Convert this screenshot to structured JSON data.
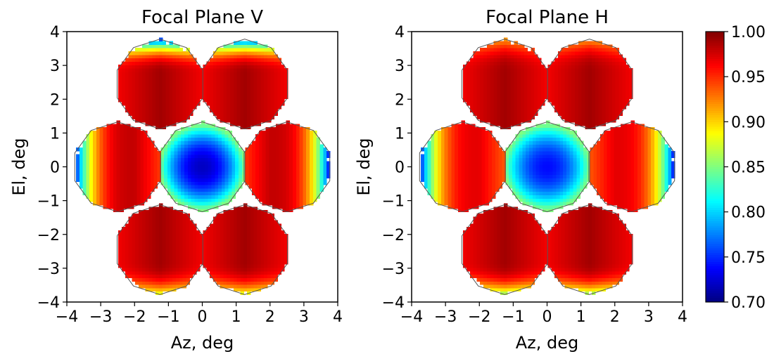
{
  "chart_data": [
    {
      "type": "heatmap",
      "title": "Focal Plane V",
      "xlabel": "Az, deg",
      "ylabel": "El, deg",
      "xlim": [
        -4,
        4
      ],
      "ylim": [
        -4,
        4
      ],
      "xticks": [
        -4,
        -3,
        -2,
        -1,
        0,
        1,
        2,
        3,
        4
      ],
      "yticks": [
        -4,
        -3,
        -2,
        -1,
        0,
        1,
        2,
        3,
        4
      ],
      "grid": false,
      "pixel_size_deg": 0.1,
      "cells": [
        {
          "cx": 0.0,
          "cy": 0.0,
          "max": 0.85,
          "min": 0.72,
          "dir": "radial"
        },
        {
          "cx": 2.5,
          "cy": 0.0,
          "max": 0.98,
          "min": 0.72,
          "dir": "x"
        },
        {
          "cx": -2.5,
          "cy": 0.0,
          "max": 0.98,
          "min": 0.72,
          "dir": "x"
        },
        {
          "cx": 1.25,
          "cy": 2.45,
          "max": 0.99,
          "min": 0.76,
          "dir": "y"
        },
        {
          "cx": -1.25,
          "cy": 2.45,
          "max": 0.99,
          "min": 0.76,
          "dir": "y"
        },
        {
          "cx": 1.25,
          "cy": -2.45,
          "max": 0.99,
          "min": 0.88,
          "dir": "y"
        },
        {
          "cx": -1.25,
          "cy": -2.45,
          "max": 0.99,
          "min": 0.88,
          "dir": "y"
        }
      ]
    },
    {
      "type": "heatmap",
      "title": "Focal Plane H",
      "xlabel": "Az, deg",
      "ylabel": "El, deg",
      "xlim": [
        -4,
        4
      ],
      "ylim": [
        -4,
        4
      ],
      "xticks": [
        -4,
        -3,
        -2,
        -1,
        0,
        1,
        2,
        3,
        4
      ],
      "yticks": [
        -4,
        -3,
        -2,
        -1,
        0,
        1,
        2,
        3,
        4
      ],
      "grid": false,
      "pixel_size_deg": 0.1,
      "cells": [
        {
          "cx": 0.0,
          "cy": 0.0,
          "max": 0.85,
          "min": 0.74,
          "dir": "radial"
        },
        {
          "cx": 2.5,
          "cy": 0.0,
          "max": 0.97,
          "min": 0.72,
          "dir": "x"
        },
        {
          "cx": -2.5,
          "cy": 0.0,
          "max": 0.97,
          "min": 0.72,
          "dir": "x"
        },
        {
          "cx": 1.25,
          "cy": 2.45,
          "max": 0.99,
          "min": 0.92,
          "dir": "y"
        },
        {
          "cx": -1.25,
          "cy": 2.45,
          "max": 0.99,
          "min": 0.92,
          "dir": "y"
        },
        {
          "cx": 1.25,
          "cy": -2.45,
          "max": 0.99,
          "min": 0.86,
          "dir": "y"
        },
        {
          "cx": -1.25,
          "cy": -2.45,
          "max": 0.99,
          "min": 0.86,
          "dir": "y"
        }
      ]
    }
  ],
  "colorbar": {
    "colormap": "jet",
    "vmin": 0.7,
    "vmax": 1.0,
    "ticks": [
      "0.70",
      "0.75",
      "0.80",
      "0.85",
      "0.90",
      "0.95",
      "1.00"
    ]
  }
}
